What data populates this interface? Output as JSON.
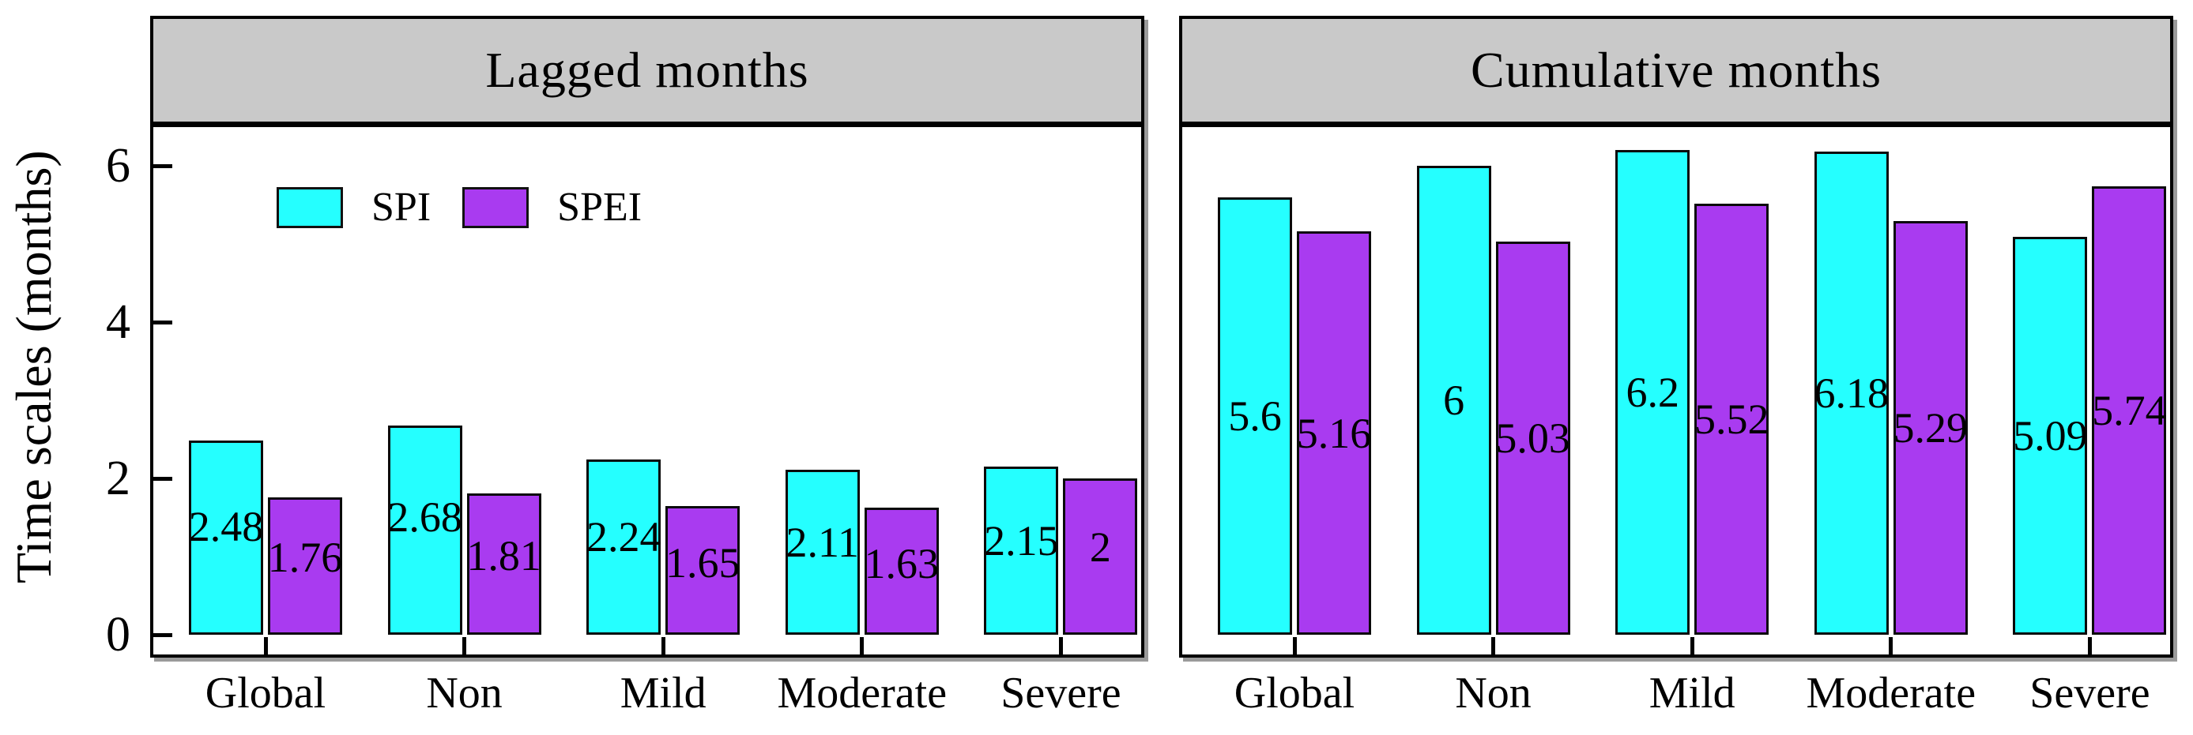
{
  "figure": {
    "y_axis_title": "Time scales (months)",
    "y_tick_labels": [
      "6",
      "4",
      "2",
      "0"
    ],
    "y_tick_values": [
      6,
      4,
      2,
      0
    ],
    "colors": {
      "spi": "#25FFFF",
      "spei": "#A93BF0",
      "header_bg": "#C9C9C9",
      "frame": "#000000",
      "shadow": "#9A9A9A"
    }
  },
  "legend": {
    "items": [
      {
        "label": "SPI",
        "color_key": "spi"
      },
      {
        "label": "SPEI",
        "color_key": "spei"
      }
    ]
  },
  "chart_data": [
    {
      "type": "bar",
      "title": "Lagged months",
      "categories": [
        "Global",
        "Non",
        "Mild",
        "Moderate",
        "Severe"
      ],
      "series": [
        {
          "name": "SPI",
          "values": [
            2.48,
            2.68,
            2.24,
            2.11,
            2.15
          ],
          "labels": [
            "2.48",
            "2.68",
            "2.24",
            "2.11",
            "2.15"
          ]
        },
        {
          "name": "SPEI",
          "values": [
            1.76,
            1.81,
            1.65,
            1.63,
            2.0
          ],
          "labels": [
            "1.76",
            "1.81",
            "1.65",
            "1.63",
            "2"
          ]
        }
      ],
      "xlabel": "",
      "ylabel": "Time scales (months)",
      "ylim": [
        0,
        6.5
      ],
      "grid": false,
      "legend_position": "inside-upper-left"
    },
    {
      "type": "bar",
      "title": "Cumulative months",
      "categories": [
        "Global",
        "Non",
        "Mild",
        "Moderate",
        "Severe"
      ],
      "series": [
        {
          "name": "SPI",
          "values": [
            5.6,
            6.0,
            6.2,
            6.18,
            5.09
          ],
          "labels": [
            "5.6",
            "6",
            "6.2",
            "6.18",
            "5.09"
          ]
        },
        {
          "name": "SPEI",
          "values": [
            5.16,
            5.03,
            5.52,
            5.29,
            5.74
          ],
          "labels": [
            "5.16",
            "5.03",
            "5.52",
            "5.29",
            "5.74"
          ]
        }
      ],
      "xlabel": "",
      "ylabel": "",
      "ylim": [
        0,
        6.5
      ],
      "grid": false,
      "legend_position": "none"
    }
  ]
}
